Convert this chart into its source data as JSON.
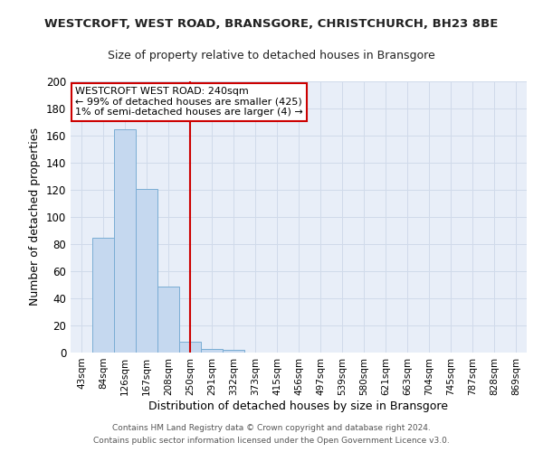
{
  "title": "WESTCROFT, WEST ROAD, BRANSGORE, CHRISTCHURCH, BH23 8BE",
  "subtitle": "Size of property relative to detached houses in Bransgore",
  "xlabel": "Distribution of detached houses by size in Bransgore",
  "ylabel": "Number of detached properties",
  "bar_color": "#c5d8ef",
  "bar_edge_color": "#7aadd4",
  "categories": [
    "43sqm",
    "84sqm",
    "126sqm",
    "167sqm",
    "208sqm",
    "250sqm",
    "291sqm",
    "332sqm",
    "373sqm",
    "415sqm",
    "456sqm",
    "497sqm",
    "539sqm",
    "580sqm",
    "621sqm",
    "663sqm",
    "704sqm",
    "745sqm",
    "787sqm",
    "828sqm",
    "869sqm"
  ],
  "values": [
    0,
    85,
    165,
    121,
    49,
    8,
    3,
    2,
    0,
    0,
    0,
    0,
    0,
    0,
    0,
    0,
    0,
    0,
    0,
    0,
    0
  ],
  "subject_index": 5,
  "red_line_color": "#cc0000",
  "annotation_line1": "WESTCROFT WEST ROAD: 240sqm",
  "annotation_line2": "← 99% of detached houses are smaller (425)",
  "annotation_line3": "1% of semi-detached houses are larger (4) →",
  "annotation_box_color": "#cc0000",
  "ylim": [
    0,
    200
  ],
  "yticks": [
    0,
    20,
    40,
    60,
    80,
    100,
    120,
    140,
    160,
    180,
    200
  ],
  "grid_color": "#d0daea",
  "footer1": "Contains HM Land Registry data © Crown copyright and database right 2024.",
  "footer2": "Contains public sector information licensed under the Open Government Licence v3.0.",
  "bg_color": "#ffffff",
  "plot_bg_color": "#e8eef8"
}
